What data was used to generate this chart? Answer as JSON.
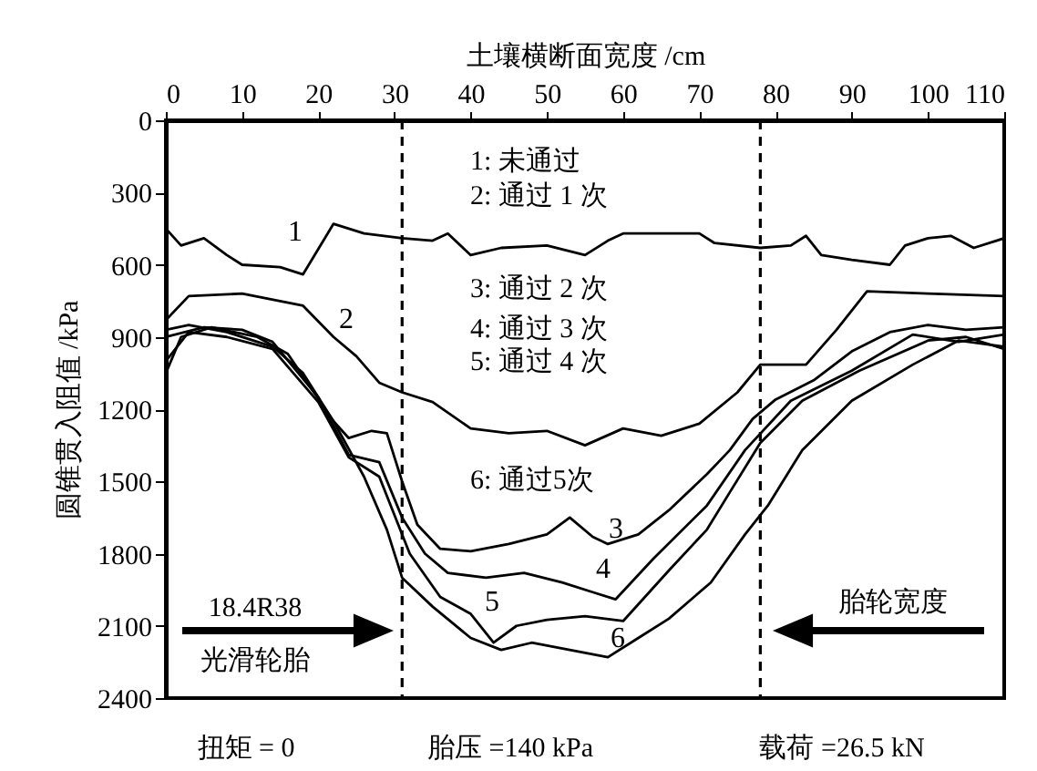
{
  "chart_data": {
    "type": "line",
    "xlabel": "土壤横断面宽度 /cm",
    "ylabel": "圆锥贯入阻值 /kPa",
    "xlim": [
      0,
      110
    ],
    "xticks": [
      0,
      10,
      20,
      30,
      40,
      50,
      60,
      70,
      80,
      90,
      100,
      110
    ],
    "ylim": [
      2400,
      0
    ],
    "yticks": [
      0,
      300,
      600,
      900,
      1200,
      1500,
      1800,
      2100,
      2400
    ],
    "line_style": "solid",
    "series": [
      {
        "name": "1",
        "color": "#000000",
        "x": [
          0,
          2,
          5,
          8,
          10,
          15,
          18,
          22,
          26,
          31,
          35,
          37,
          40,
          44,
          50,
          55,
          58,
          60,
          70,
          72,
          78,
          82,
          84,
          86,
          90,
          95,
          97,
          100,
          103,
          106,
          110
        ],
        "values": [
          450,
          520,
          490,
          560,
          600,
          610,
          640,
          430,
          470,
          490,
          500,
          470,
          560,
          530,
          520,
          560,
          500,
          470,
          470,
          510,
          530,
          520,
          480,
          560,
          580,
          600,
          520,
          490,
          480,
          530,
          490
        ]
      },
      {
        "name": "2",
        "color": "#000000",
        "x": [
          0,
          3,
          10,
          18,
          22,
          25,
          28,
          31,
          35,
          40,
          45,
          50,
          55,
          60,
          65,
          70,
          75,
          78,
          84,
          88,
          92,
          100,
          110
        ],
        "values": [
          830,
          730,
          720,
          770,
          900,
          980,
          1090,
          1130,
          1170,
          1280,
          1300,
          1290,
          1350,
          1280,
          1310,
          1260,
          1130,
          1015,
          1015,
          870,
          710,
          720,
          730
        ]
      },
      {
        "name": "3",
        "color": "#000000",
        "x": [
          0,
          3,
          8,
          14,
          18,
          22,
          24,
          27,
          29,
          31,
          33,
          36,
          40,
          45,
          50,
          53,
          56,
          58,
          62,
          66,
          71,
          74,
          77,
          80,
          85,
          90,
          95,
          100,
          105,
          110
        ],
        "values": [
          870,
          850,
          880,
          940,
          1050,
          1250,
          1320,
          1290,
          1300,
          1500,
          1680,
          1780,
          1790,
          1760,
          1720,
          1650,
          1730,
          1760,
          1720,
          1620,
          1470,
          1370,
          1240,
          1160,
          1080,
          960,
          880,
          850,
          870,
          860
        ]
      },
      {
        "name": "4",
        "color": "#000000",
        "x": [
          0,
          5,
          10,
          14,
          20,
          24,
          28,
          31,
          34,
          37,
          42,
          47,
          52,
          56,
          59,
          64,
          71,
          76,
          82,
          90,
          98,
          104,
          110
        ],
        "values": [
          900,
          860,
          870,
          920,
          1150,
          1390,
          1420,
          1650,
          1800,
          1880,
          1900,
          1880,
          1920,
          1960,
          1990,
          1820,
          1600,
          1370,
          1165,
          1040,
          890,
          920,
          890
        ]
      },
      {
        "name": "5",
        "color": "#000000",
        "x": [
          0,
          3,
          8,
          14,
          20,
          24,
          28,
          32,
          36,
          40,
          43,
          46,
          50,
          55,
          60,
          66,
          71,
          74,
          78,
          83.5,
          91,
          100,
          105,
          110
        ],
        "values": [
          1000,
          880,
          900,
          950,
          1170,
          1400,
          1480,
          1800,
          1980,
          2050,
          2170,
          2100,
          2075,
          2060,
          2080,
          1870,
          1700,
          1545,
          1340,
          1165,
          1040,
          915,
          900,
          950
        ]
      },
      {
        "name": "6",
        "color": "#000000",
        "x": [
          0,
          2,
          6,
          12,
          16,
          22,
          26,
          29,
          31,
          35,
          40,
          44,
          48,
          53,
          58,
          62,
          66,
          71.5,
          76,
          79,
          83.5,
          90,
          98,
          104,
          110
        ],
        "values": [
          1050,
          900,
          860,
          900,
          970,
          1250,
          1480,
          1700,
          1900,
          2020,
          2150,
          2200,
          2170,
          2200,
          2230,
          2150,
          2070,
          1920,
          1720,
          1600,
          1370,
          1165,
          1015,
          915,
          940
        ]
      }
    ],
    "ref_lines": [
      {
        "axis": "x",
        "value": 31,
        "color": "#000000",
        "line_style": "dashed"
      },
      {
        "axis": "x",
        "value": 78,
        "color": "#000000",
        "line_style": "dashed"
      }
    ],
    "annotations": [
      "1: 未通过",
      "2: 通过 1 次",
      "3: 通过 2 次",
      "4: 通过 3 次",
      "5: 通过 4 次",
      "6: 通过5次",
      "18.4R38",
      "光滑轮胎",
      "胎轮宽度",
      "扭矩 = 0",
      "胎压 =140 kPa",
      "载荷 =26.5 kN"
    ]
  }
}
